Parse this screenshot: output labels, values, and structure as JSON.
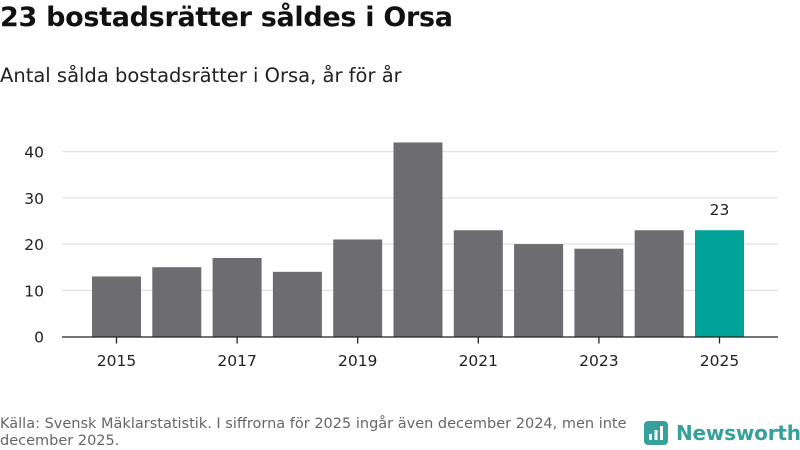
{
  "chart_data": {
    "type": "bar",
    "title": "23 bostadsrätter såldes i Orsa",
    "subtitle": "Antal sålda bostadsrätter i Orsa, år för år",
    "categories": [
      "2015",
      "2016",
      "2017",
      "2018",
      "2019",
      "2020",
      "2021",
      "2022",
      "2023",
      "2024",
      "2025"
    ],
    "values": [
      13,
      15,
      17,
      14,
      21,
      42,
      23,
      20,
      19,
      23,
      23
    ],
    "x_tick_labels": [
      "2015",
      "2017",
      "2019",
      "2021",
      "2023",
      "2025"
    ],
    "y_ticks": [
      0,
      10,
      20,
      30,
      40
    ],
    "ylim": [
      0,
      45
    ],
    "highlight_index": 10,
    "highlight_label": "23",
    "xlabel": "",
    "ylabel": "",
    "grid": true
  },
  "colors": {
    "bar": "#6d6c71",
    "highlight": "#00a39a",
    "grid": "#d9d9d9",
    "axis": "#222222",
    "brand": "#36a19c"
  },
  "footer": {
    "source": "Källa: Svensk Mäklarstatistik. I siffrorna för 2025 ingår även december 2024, men inte december 2025."
  },
  "brand": {
    "name": "Newsworthy",
    "icon": "bar-chart-logo-icon"
  }
}
